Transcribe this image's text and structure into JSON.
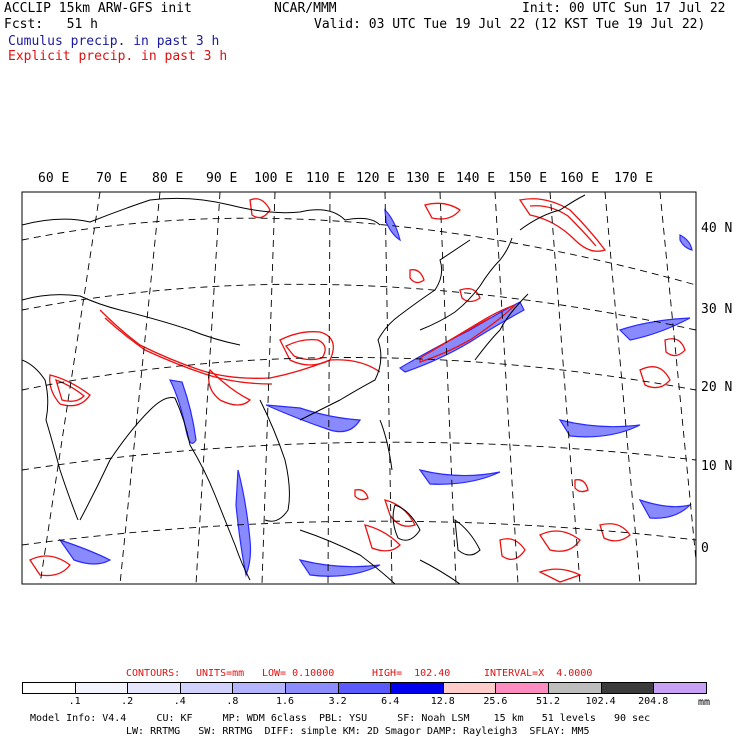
{
  "header": {
    "left_line1": "ACCLIP 15km ARW-GFS init",
    "center_line1": "NCAR/MMM",
    "right_line1": "Init: 00 UTC Sun 17 Jul 22",
    "left_line2": "Fcst:   51 h",
    "right_line2": "Valid: 03 UTC Tue 19 Jul 22 (12 KST Tue 19 Jul 22)",
    "legend_cumulus": "Cumulus precip. in past 3 h",
    "legend_explicit": "Explicit precip. in past 3 h"
  },
  "map": {
    "lon_labels": [
      "60 E",
      "70 E",
      "80 E",
      "90 E",
      "100 E",
      "110 E",
      "120 E",
      "130 E",
      "140 E",
      "150 E",
      "160 E",
      "170 E"
    ],
    "lat_labels": [
      "40 N",
      "30 N",
      "20 N",
      "10 N",
      "0"
    ],
    "colors": {
      "cumulus": "#2a2aff",
      "explicit": "#ee1111",
      "coast": "#000000",
      "grid": "#000000"
    }
  },
  "contours": {
    "label": "CONTOURS:",
    "units": "UNITS=mm",
    "low": "LOW= 0.10000",
    "high": "HIGH=  102.40",
    "interval": "INTERVAL=X  4.0000"
  },
  "colorbar": {
    "labels": [
      ".1",
      ".2",
      ".4",
      ".8",
      "1.6",
      "3.2",
      "6.4",
      "12.8",
      "25.6",
      "51.2",
      "102.4",
      "204.8"
    ],
    "unit": "mm",
    "colors": [
      "#ffffff",
      "#f4f4ff",
      "#e6e6ff",
      "#d2d2ff",
      "#b4b4ff",
      "#8c8cff",
      "#5a5aff",
      "#0000ee",
      "#ffcccc",
      "#ff8cc0",
      "#bdbdbd",
      "#3c3c3c",
      "#c8a0f5"
    ]
  },
  "footer": {
    "line1": "Model Info: V4.4     CU: KF     MP: WDM 6class  PBL: YSU     SF: Noah LSM    15 km   51 levels   90 sec",
    "line2": "LW: RRTMG   SW: RRTMG  DIFF: simple KM: 2D Smagor DAMP: Rayleigh3  SFLAY: MM5"
  }
}
